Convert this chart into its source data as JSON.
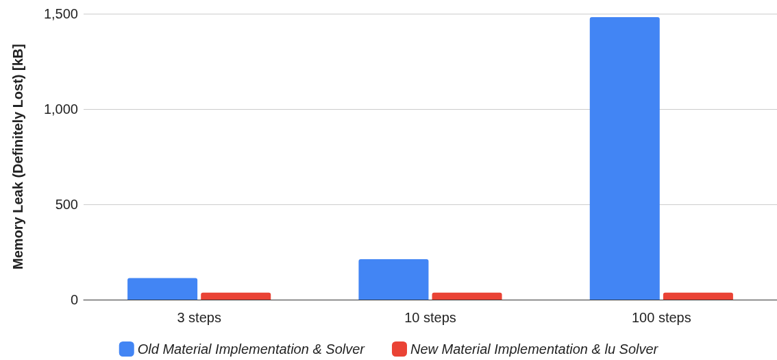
{
  "chart_data": {
    "type": "bar",
    "ylabel": "Memory Leak (Definitely Lost) [kB]",
    "categories": [
      "3 steps",
      "10 steps",
      "100 steps"
    ],
    "series": [
      {
        "name": "Old Material Implementation & Solver",
        "color": "#4285f4",
        "values": [
          113,
          212,
          1482
        ]
      },
      {
        "name": "New Material Implementation & lu Solver",
        "color": "#ea4335",
        "values": [
          37,
          37,
          37
        ]
      }
    ],
    "ylim": [
      0,
      1500
    ],
    "yticks": [
      0,
      {
        "value": 500,
        "label": "500"
      },
      {
        "value": 1000,
        "label": "1,000"
      },
      {
        "value": 1500,
        "label": "1,500"
      }
    ],
    "grid": "y",
    "legend": "bottom"
  }
}
